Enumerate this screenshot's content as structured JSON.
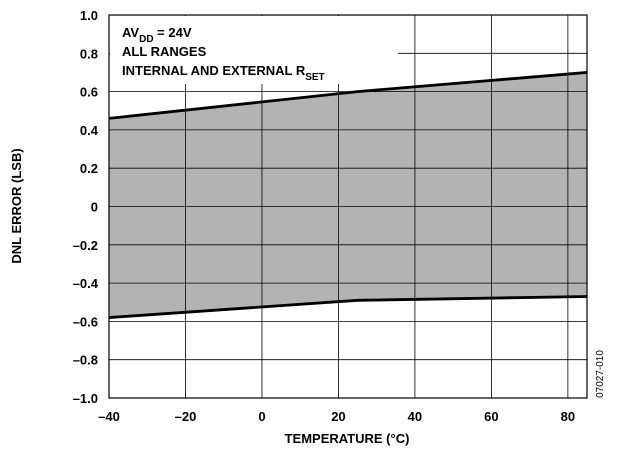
{
  "chart_data": {
    "type": "area",
    "xlabel": "TEMPERATURE (°C)",
    "ylabel": "DNL ERROR (LSB)",
    "xlim": [
      -40,
      85
    ],
    "ylim": [
      -1.0,
      1.0
    ],
    "x_ticks": [
      -40,
      -20,
      0,
      20,
      40,
      60,
      80
    ],
    "x_tick_labels": [
      "–40",
      "–20",
      "0",
      "20",
      "40",
      "60",
      "80"
    ],
    "y_ticks": [
      1.0,
      0.8,
      0.6,
      0.4,
      0.2,
      0,
      -0.2,
      -0.4,
      -0.6,
      -0.8,
      -1.0
    ],
    "y_tick_labels": [
      "1.0",
      "0.8",
      "0.6",
      "0.4",
      "0.2",
      "0",
      "–0.2",
      "–0.4",
      "–0.6",
      "–0.8",
      "–1.0"
    ],
    "grid": true,
    "fill_color": "#b3b3b3",
    "line_color": "#000000",
    "series": [
      {
        "x": [
          -40,
          25,
          85
        ],
        "values": [
          0.46,
          0.6,
          0.7
        ]
      },
      {
        "x": [
          -40,
          25,
          85
        ],
        "values": [
          -0.58,
          -0.49,
          -0.47
        ]
      }
    ],
    "annotations": {
      "line1_main": "AV",
      "line1_sub": "DD",
      "line1_rest": " = 24V",
      "line2": "ALL RANGES",
      "line3_main": "INTERNAL AND EXTERNAL R",
      "line3_sub": "SET"
    },
    "figure_id": "07027-010"
  }
}
